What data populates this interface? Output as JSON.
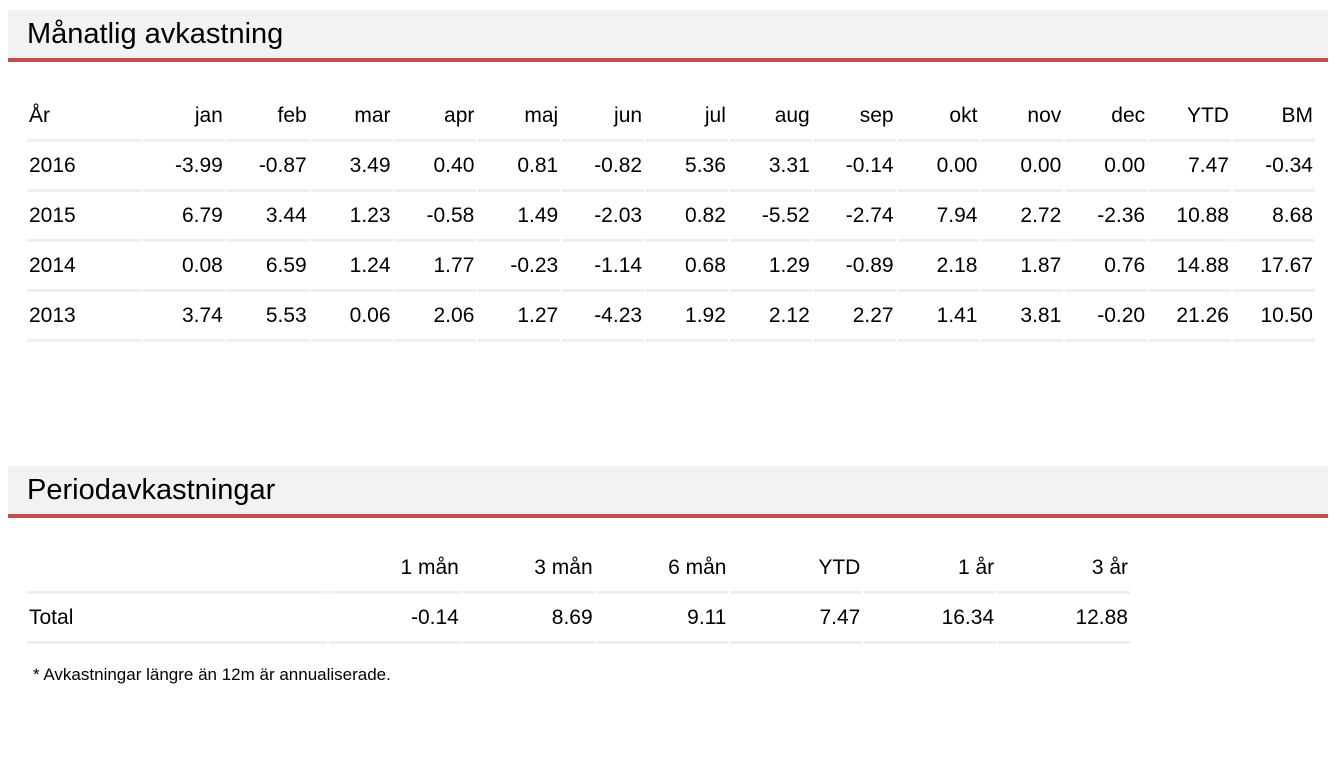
{
  "colors": {
    "accent_red": "#c0504d",
    "section_header_bg": "#f2f2f2",
    "row_divider": "#efefef"
  },
  "monthly_section": {
    "title": "Månatlig avkastning",
    "columns": [
      "År",
      "jan",
      "feb",
      "mar",
      "apr",
      "maj",
      "jun",
      "jul",
      "aug",
      "sep",
      "okt",
      "nov",
      "dec",
      "YTD",
      "BM"
    ],
    "rows": [
      {
        "label": "2016",
        "values": [
          "-3.99",
          "-0.87",
          "3.49",
          "0.40",
          "0.81",
          "-0.82",
          "5.36",
          "3.31",
          "-0.14",
          "0.00",
          "0.00",
          "0.00",
          "7.47",
          "-0.34"
        ]
      },
      {
        "label": "2015",
        "values": [
          "6.79",
          "3.44",
          "1.23",
          "-0.58",
          "1.49",
          "-2.03",
          "0.82",
          "-5.52",
          "-2.74",
          "7.94",
          "2.72",
          "-2.36",
          "10.88",
          "8.68"
        ]
      },
      {
        "label": "2014",
        "values": [
          "0.08",
          "6.59",
          "1.24",
          "1.77",
          "-0.23",
          "-1.14",
          "0.68",
          "1.29",
          "-0.89",
          "2.18",
          "1.87",
          "0.76",
          "14.88",
          "17.67"
        ]
      },
      {
        "label": "2013",
        "values": [
          "3.74",
          "5.53",
          "0.06",
          "2.06",
          "1.27",
          "-4.23",
          "1.92",
          "2.12",
          "2.27",
          "1.41",
          "3.81",
          "-0.20",
          "21.26",
          "10.50"
        ]
      }
    ]
  },
  "period_section": {
    "title": "Periodavkastningar",
    "columns": [
      "",
      "1 mån",
      "3 mån",
      "6 mån",
      "YTD",
      "1 år",
      "3 år"
    ],
    "rows": [
      {
        "label": "Total",
        "values": [
          "-0.14",
          "8.69",
          "9.11",
          "7.47",
          "16.34",
          "12.88"
        ]
      }
    ],
    "footnote": "* Avkastningar längre än 12m är annualiserade."
  }
}
